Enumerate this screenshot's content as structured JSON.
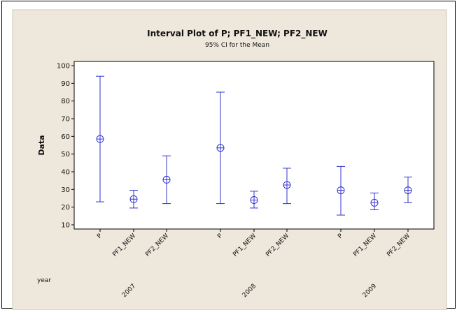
{
  "chart_data": {
    "type": "interval",
    "title": "Interval Plot of P; PF1_NEW; PF2_NEW",
    "subtitle": "95% CI for the Mean",
    "ylabel": "Data",
    "xlabel": "year",
    "ylim": [
      10,
      100
    ],
    "yticks": [
      10,
      20,
      30,
      40,
      50,
      60,
      70,
      80,
      90,
      100
    ],
    "groups": [
      "2007",
      "2008",
      "2009"
    ],
    "categories": [
      "P",
      "PF1_NEW",
      "PF2_NEW",
      "P",
      "PF1_NEW",
      "PF2_NEW",
      "P",
      "PF1_NEW",
      "PF2_NEW"
    ],
    "group_index": [
      0,
      0,
      0,
      1,
      1,
      1,
      2,
      2,
      2
    ],
    "means": [
      58.5,
      24.5,
      35.5,
      53.5,
      24,
      32.5,
      29.5,
      22.5,
      29.5
    ],
    "lower": [
      23,
      19.5,
      22,
      22,
      19.5,
      22,
      15.5,
      18.5,
      22.5
    ],
    "upper": [
      94,
      29.5,
      49,
      85,
      29,
      42,
      43,
      28,
      37
    ],
    "colors": {
      "page_bg": "#ffffff",
      "chart_bg": "#eee7dc",
      "plot_bg": "#ffffff",
      "interval": "#3333cc",
      "border": "#000000"
    }
  }
}
